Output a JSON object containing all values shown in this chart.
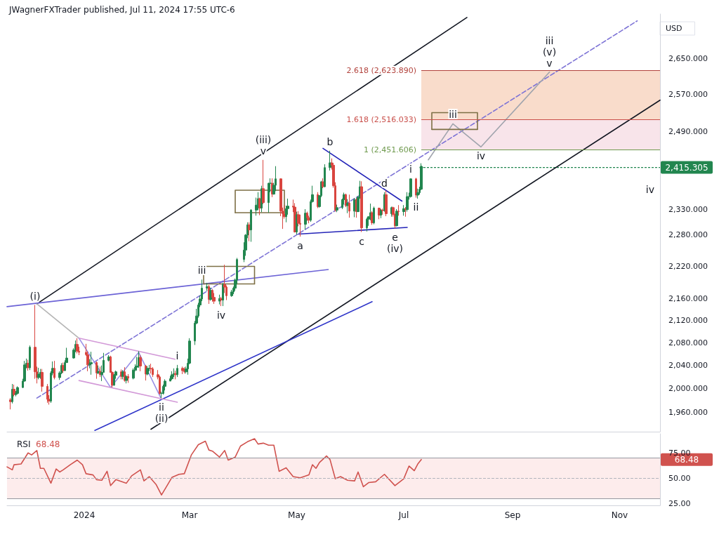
{
  "chart_data": [
    {
      "type": "candlestick",
      "title": "JWagnerFXTrader published, Jul 11, 2024 17:55 UTC-6",
      "ylabel": "USD",
      "log": true,
      "tick_labels": "y",
      "xlim": [
        "2023-11-18",
        "2024-11-24"
      ],
      "ylim": [
        1928,
        2753
      ],
      "yticks": [
        {
          "value": 1960,
          "label": "1,960.000"
        },
        {
          "value": 2000,
          "label": "2,000.000"
        },
        {
          "value": 2040,
          "label": "2,040.000"
        },
        {
          "value": 2080,
          "label": "2,080.000"
        },
        {
          "value": 2120,
          "label": "2,120.000"
        },
        {
          "value": 2160,
          "label": "2,160.000"
        },
        {
          "value": 2220,
          "label": "2,220.000"
        },
        {
          "value": 2280,
          "label": "2,280.000"
        },
        {
          "value": 2330,
          "label": "2,330.000"
        },
        {
          "value": 2490,
          "label": "2,490.000"
        },
        {
          "value": 2570,
          "label": "2,570.000"
        },
        {
          "value": 2650,
          "label": "2,650.000"
        }
      ],
      "x": [
        "2023-11-20",
        "2023-11-21",
        "2023-11-22",
        "2023-11-23",
        "2023-11-24",
        "2023-11-27",
        "2023-11-28",
        "2023-11-29",
        "2023-11-30",
        "2023-12-01",
        "2023-12-04",
        "2023-12-05",
        "2023-12-06",
        "2023-12-07",
        "2023-12-08",
        "2023-12-11",
        "2023-12-12",
        "2023-12-13",
        "2023-12-14",
        "2023-12-15",
        "2023-12-18",
        "2023-12-19",
        "2023-12-20",
        "2023-12-21",
        "2023-12-22",
        "2023-12-26",
        "2023-12-27",
        "2023-12-28",
        "2023-12-29",
        "2024-01-02",
        "2024-01-03",
        "2024-01-04",
        "2024-01-05",
        "2024-01-08",
        "2024-01-09",
        "2024-01-10",
        "2024-01-11",
        "2024-01-12",
        "2024-01-15",
        "2024-01-16",
        "2024-01-17",
        "2024-01-18",
        "2024-01-19",
        "2024-01-22",
        "2024-01-23",
        "2024-01-24",
        "2024-01-25",
        "2024-01-26",
        "2024-01-29",
        "2024-01-30",
        "2024-01-31",
        "2024-02-01",
        "2024-02-02",
        "2024-02-05",
        "2024-02-06",
        "2024-02-07",
        "2024-02-08",
        "2024-02-09",
        "2024-02-12",
        "2024-02-13",
        "2024-02-14",
        "2024-02-15",
        "2024-02-16",
        "2024-02-19",
        "2024-02-20",
        "2024-02-21",
        "2024-02-22",
        "2024-02-23",
        "2024-02-26",
        "2024-02-27",
        "2024-02-28",
        "2024-02-29",
        "2024-03-01",
        "2024-03-04",
        "2024-03-05",
        "2024-03-06",
        "2024-03-07",
        "2024-03-08",
        "2024-03-11",
        "2024-03-12",
        "2024-03-13",
        "2024-03-14",
        "2024-03-15",
        "2024-03-18",
        "2024-03-19",
        "2024-03-20",
        "2024-03-21",
        "2024-03-22",
        "2024-03-25",
        "2024-03-26",
        "2024-03-27",
        "2024-03-28",
        "2024-04-01",
        "2024-04-02",
        "2024-04-03",
        "2024-04-04",
        "2024-04-05",
        "2024-04-08",
        "2024-04-09",
        "2024-04-10",
        "2024-04-11",
        "2024-04-12",
        "2024-04-15",
        "2024-04-16",
        "2024-04-17",
        "2024-04-18",
        "2024-04-19",
        "2024-04-22",
        "2024-04-23",
        "2024-04-24",
        "2024-04-25",
        "2024-04-26",
        "2024-04-29",
        "2024-04-30",
        "2024-05-01",
        "2024-05-02",
        "2024-05-03",
        "2024-05-06",
        "2024-05-07",
        "2024-05-08",
        "2024-05-09",
        "2024-05-10",
        "2024-05-13",
        "2024-05-14",
        "2024-05-15",
        "2024-05-16",
        "2024-05-17",
        "2024-05-20",
        "2024-05-21",
        "2024-05-22",
        "2024-05-23",
        "2024-05-24",
        "2024-05-27",
        "2024-05-28",
        "2024-05-29",
        "2024-05-30",
        "2024-05-31",
        "2024-06-03",
        "2024-06-04",
        "2024-06-05",
        "2024-06-06",
        "2024-06-07",
        "2024-06-10",
        "2024-06-11",
        "2024-06-12",
        "2024-06-13",
        "2024-06-14",
        "2024-06-17",
        "2024-06-18",
        "2024-06-19",
        "2024-06-20",
        "2024-06-21",
        "2024-06-24",
        "2024-06-25",
        "2024-06-26",
        "2024-06-27",
        "2024-06-28",
        "2024-07-01",
        "2024-07-02",
        "2024-07-03",
        "2024-07-04",
        "2024-07-05",
        "2024-07-08",
        "2024-07-09",
        "2024-07-10",
        "2024-07-11"
      ],
      "ohlc": [
        [
          1981,
          1984,
          1965,
          1978
        ],
        [
          1978,
          2008,
          1975,
          1999
        ],
        [
          1999,
          2007,
          1987,
          1990
        ],
        [
          1990,
          1996,
          1987,
          1992
        ],
        [
          1992,
          2004,
          1990,
          2002
        ],
        [
          2002,
          2017,
          2001,
          2013
        ],
        [
          2013,
          2048,
          2012,
          2041
        ],
        [
          2041,
          2052,
          2035,
          2044
        ],
        [
          2044,
          2050,
          2031,
          2036
        ],
        [
          2036,
          2075,
          2032,
          2072
        ],
        [
          2072,
          2148,
          2017,
          2029
        ],
        [
          2029,
          2038,
          2009,
          2019
        ],
        [
          2019,
          2036,
          2016,
          2025
        ],
        [
          2025,
          2034,
          2017,
          2028
        ],
        [
          2028,
          2034,
          1995,
          2004
        ],
        [
          2004,
          2008,
          1976,
          1982
        ],
        [
          1982,
          1989,
          1973,
          1979
        ],
        [
          1979,
          2030,
          1976,
          2027
        ],
        [
          2027,
          2047,
          2023,
          2035
        ],
        [
          2035,
          2048,
          2016,
          2019
        ],
        [
          2019,
          2030,
          2015,
          2027
        ],
        [
          2027,
          2044,
          2025,
          2040
        ],
        [
          2040,
          2045,
          2027,
          2031
        ],
        [
          2031,
          2049,
          2031,
          2045
        ],
        [
          2045,
          2071,
          2045,
          2053
        ],
        [
          2053,
          2070,
          2052,
          2067
        ],
        [
          2067,
          2084,
          2063,
          2077
        ],
        [
          2077,
          2088,
          2061,
          2065
        ],
        [
          2065,
          2073,
          2058,
          2063
        ],
        [
          2063,
          2078,
          2057,
          2059
        ],
        [
          2059,
          2065,
          2030,
          2041
        ],
        [
          2041,
          2051,
          2035,
          2043
        ],
        [
          2043,
          2064,
          2024,
          2045
        ],
        [
          2045,
          2047,
          2017,
          2027
        ],
        [
          2027,
          2040,
          2025,
          2030
        ],
        [
          2030,
          2038,
          2020,
          2024
        ],
        [
          2024,
          2040,
          2013,
          2028
        ],
        [
          2028,
          2062,
          2028,
          2049
        ],
        [
          2049,
          2058,
          2047,
          2055
        ],
        [
          2055,
          2057,
          2028,
          2028
        ],
        [
          2028,
          2030,
          2002,
          2006
        ],
        [
          2006,
          2025,
          2005,
          2023
        ],
        [
          2023,
          2031,
          2017,
          2029
        ],
        [
          2029,
          2033,
          2016,
          2021
        ],
        [
          2021,
          2032,
          2016,
          2029
        ],
        [
          2029,
          2037,
          2012,
          2014
        ],
        [
          2014,
          2023,
          2009,
          2021
        ],
        [
          2021,
          2025,
          2010,
          2018
        ],
        [
          2018,
          2035,
          2016,
          2032
        ],
        [
          2032,
          2042,
          2030,
          2037
        ],
        [
          2037,
          2055,
          2031,
          2039
        ],
        [
          2039,
          2065,
          2036,
          2054
        ],
        [
          2054,
          2058,
          2030,
          2039
        ],
        [
          2039,
          2041,
          2014,
          2025
        ],
        [
          2025,
          2039,
          2023,
          2035
        ],
        [
          2035,
          2041,
          2030,
          2035
        ],
        [
          2035,
          2043,
          2026,
          2034
        ],
        [
          2034,
          2037,
          2020,
          2024
        ],
        [
          2024,
          2032,
          2016,
          2020
        ],
        [
          2020,
          2022,
          1990,
          1992
        ],
        [
          1992,
          1995,
          1984,
          1992
        ],
        [
          1992,
          2007,
          1990,
          2004
        ],
        [
          2004,
          2016,
          1997,
          2013
        ],
        [
          2013,
          2022,
          2013,
          2017
        ],
        [
          2017,
          2030,
          2015,
          2024
        ],
        [
          2024,
          2035,
          2020,
          2026
        ],
        [
          2026,
          2031,
          2016,
          2024
        ],
        [
          2024,
          2041,
          2020,
          2035
        ],
        [
          2035,
          2038,
          2025,
          2031
        ],
        [
          2031,
          2037,
          2026,
          2029
        ],
        [
          2029,
          2038,
          2026,
          2034
        ],
        [
          2034,
          2052,
          2024,
          2044
        ],
        [
          2044,
          2088,
          2042,
          2083
        ],
        [
          2083,
          2119,
          2076,
          2115
        ],
        [
          2115,
          2141,
          2113,
          2128
        ],
        [
          2128,
          2152,
          2125,
          2148
        ],
        [
          2148,
          2165,
          2144,
          2159
        ],
        [
          2159,
          2195,
          2155,
          2179
        ],
        [
          2179,
          2189,
          2174,
          2182
        ],
        [
          2182,
          2185,
          2150,
          2158
        ],
        [
          2158,
          2180,
          2156,
          2175
        ],
        [
          2175,
          2177,
          2154,
          2162
        ],
        [
          2162,
          2170,
          2150,
          2155
        ],
        [
          2155,
          2167,
          2149,
          2160
        ],
        [
          2160,
          2163,
          2146,
          2157
        ],
        [
          2157,
          2189,
          2146,
          2186
        ],
        [
          2186,
          2223,
          2170,
          2181
        ],
        [
          2181,
          2184,
          2157,
          2165
        ],
        [
          2165,
          2176,
          2163,
          2172
        ],
        [
          2172,
          2182,
          2168,
          2179
        ],
        [
          2179,
          2197,
          2174,
          2194
        ],
        [
          2194,
          2236,
          2186,
          2233
        ],
        [
          2233,
          2266,
          2228,
          2251
        ],
        [
          2251,
          2282,
          2240,
          2280
        ],
        [
          2280,
          2305,
          2274,
          2300
        ],
        [
          2300,
          2305,
          2268,
          2290
        ],
        [
          2290,
          2331,
          2267,
          2329
        ],
        [
          2329,
          2354,
          2318,
          2339
        ],
        [
          2339,
          2365,
          2329,
          2352
        ],
        [
          2352,
          2354,
          2319,
          2333
        ],
        [
          2333,
          2378,
          2325,
          2372
        ],
        [
          2372,
          2431,
          2341,
          2344
        ],
        [
          2344,
          2384,
          2324,
          2383
        ],
        [
          2383,
          2393,
          2365,
          2383
        ],
        [
          2383,
          2393,
          2355,
          2361
        ],
        [
          2361,
          2384,
          2360,
          2379
        ],
        [
          2379,
          2418,
          2367,
          2392
        ],
        [
          2392,
          2393,
          2317,
          2327
        ],
        [
          2327,
          2334,
          2292,
          2322
        ],
        [
          2322,
          2339,
          2312,
          2316
        ],
        [
          2316,
          2338,
          2305,
          2332
        ],
        [
          2332,
          2352,
          2320,
          2337
        ],
        [
          2337,
          2350,
          2325,
          2335
        ],
        [
          2335,
          2343,
          2285,
          2286
        ],
        [
          2286,
          2326,
          2281,
          2320
        ],
        [
          2320,
          2327,
          2297,
          2303
        ],
        [
          2303,
          2320,
          2277,
          2301
        ],
        [
          2301,
          2331,
          2291,
          2323
        ],
        [
          2323,
          2326,
          2308,
          2314
        ],
        [
          2314,
          2318,
          2303,
          2309
        ],
        [
          2309,
          2350,
          2306,
          2346
        ],
        [
          2346,
          2378,
          2344,
          2360
        ],
        [
          2360,
          2365,
          2333,
          2336
        ],
        [
          2336,
          2359,
          2334,
          2358
        ],
        [
          2358,
          2388,
          2355,
          2386
        ],
        [
          2386,
          2393,
          2373,
          2376
        ],
        [
          2376,
          2422,
          2375,
          2415
        ],
        [
          2415,
          2450,
          2409,
          2425
        ],
        [
          2425,
          2434,
          2411,
          2420
        ],
        [
          2420,
          2425,
          2374,
          2378
        ],
        [
          2378,
          2385,
          2326,
          2329
        ],
        [
          2329,
          2340,
          2325,
          2334
        ],
        [
          2334,
          2352,
          2331,
          2350
        ],
        [
          2350,
          2364,
          2340,
          2360
        ],
        [
          2360,
          2362,
          2335,
          2338
        ],
        [
          2338,
          2351,
          2323,
          2343
        ],
        [
          2343,
          2360,
          2314,
          2327
        ],
        [
          2327,
          2353,
          2315,
          2350
        ],
        [
          2350,
          2353,
          2314,
          2326
        ],
        [
          2326,
          2357,
          2325,
          2355
        ],
        [
          2355,
          2388,
          2352,
          2376
        ],
        [
          2376,
          2387,
          2286,
          2294
        ],
        [
          2294,
          2314,
          2287,
          2311
        ],
        [
          2311,
          2317,
          2298,
          2316
        ],
        [
          2316,
          2342,
          2309,
          2324
        ],
        [
          2324,
          2327,
          2300,
          2304
        ],
        [
          2304,
          2336,
          2301,
          2333
        ],
        [
          2333,
          2334,
          2311,
          2319
        ],
        [
          2319,
          2331,
          2313,
          2329
        ],
        [
          2329,
          2332,
          2320,
          2328
        ],
        [
          2328,
          2365,
          2326,
          2360
        ],
        [
          2360,
          2368,
          2317,
          2322
        ],
        [
          2322,
          2336,
          2316,
          2334
        ],
        [
          2334,
          2336,
          2316,
          2320
        ],
        [
          2320,
          2322,
          2293,
          2298
        ],
        [
          2298,
          2331,
          2297,
          2327
        ],
        [
          2327,
          2339,
          2318,
          2326
        ],
        [
          2326,
          2339,
          2318,
          2332
        ],
        [
          2332,
          2335,
          2316,
          2330
        ],
        [
          2330,
          2365,
          2326,
          2356
        ],
        [
          2356,
          2364,
          2350,
          2356
        ],
        [
          2356,
          2393,
          2354,
          2392
        ],
        [
          2392,
          2394,
          2354,
          2359
        ],
        [
          2359,
          2372,
          2352,
          2364
        ],
        [
          2364,
          2376,
          2360,
          2371
        ],
        [
          2371,
          2424,
          2369,
          2415.305
        ]
      ],
      "series": [
        {
          "type": "line",
          "color": "#131722",
          "x": [
            "2023-12-05",
            "2024-08-06"
          ],
          "values": [
            2150,
            2745
          ]
        },
        {
          "type": "line",
          "color": "#131722",
          "x": [
            "2024-02-08",
            "2024-11-24"
          ],
          "values": [
            1932,
            2558
          ]
        },
        {
          "type": "line",
          "color": "#7e74d6",
          "line_style": "dashed",
          "x": [
            "2023-12-05",
            "2024-11-11"
          ],
          "values": [
            1984,
            2737
          ]
        },
        {
          "type": "line",
          "color": "#6c63d6",
          "x": [
            "2023-11-18",
            "2024-05-19"
          ],
          "values": [
            2145,
            2214
          ]
        },
        {
          "type": "line",
          "color": "#2f35c9",
          "x": [
            "2024-01-07",
            "2024-06-13"
          ],
          "values": [
            1930,
            2154
          ]
        },
        {
          "type": "line",
          "color": "#2424b8",
          "x": [
            "2024-05-16",
            "2024-06-30"
          ],
          "values": [
            2455,
            2347
          ]
        },
        {
          "type": "line",
          "color": "#2424b8",
          "x": [
            "2024-05-02",
            "2024-07-03"
          ],
          "values": [
            2282,
            2295
          ]
        },
        {
          "type": "line",
          "color": "#b5b5b5",
          "x": [
            "2023-12-05",
            "2023-12-29"
          ],
          "values": [
            2150,
            2088
          ]
        },
        {
          "type": "line",
          "color": "#9a90e6",
          "x": [
            "2023-12-29",
            "2024-01-16",
            "2024-02-01",
            "2024-02-14"
          ],
          "values": [
            2088,
            2002,
            2063,
            1982
          ]
        },
        {
          "type": "line",
          "color": "#d39ad8",
          "x": [
            "2023-12-29",
            "2024-02-23"
          ],
          "values": [
            2088,
            2050
          ]
        },
        {
          "type": "line",
          "color": "#d39ad8",
          "x": [
            "2023-12-29",
            "2024-02-23"
          ],
          "values": [
            2014,
            1977
          ]
        },
        {
          "type": "line",
          "color": "#a0a4ad",
          "x": [
            "2024-07-15",
            "2024-07-29",
            "2024-08-14",
            "2024-09-22"
          ],
          "values": [
            2431,
            2507,
            2458,
            2620
          ]
        },
        {
          "type": "line",
          "color": "#7d6f45",
          "x": [
            "2024-03-27",
            "2024-03-27",
            "2024-04-24",
            "2024-04-24"
          ],
          "values": [
            2324,
            2369,
            2369,
            2324
          ]
        },
        {
          "type": "line",
          "color": "#7d6f45",
          "x": [
            "2024-03-27",
            "2024-04-24"
          ],
          "values": [
            2324,
            2324
          ]
        },
        {
          "type": "line",
          "color": "#7d6f45",
          "x": [
            "2024-03-09",
            "2024-03-09",
            "2024-04-07",
            "2024-04-07"
          ],
          "values": [
            2187,
            2220,
            2220,
            2187
          ]
        },
        {
          "type": "line",
          "color": "#7d6f45",
          "x": [
            "2024-03-09",
            "2024-04-07"
          ],
          "values": [
            2187,
            2187
          ]
        },
        {
          "type": "line",
          "color": "#7d6f45",
          "x": [
            "2024-07-17",
            "2024-07-17",
            "2024-08-12",
            "2024-08-12"
          ],
          "values": [
            2495,
            2531,
            2531,
            2495
          ]
        },
        {
          "type": "line",
          "color": "#7d6f45",
          "x": [
            "2024-07-17",
            "2024-08-12"
          ],
          "values": [
            2495,
            2495
          ]
        }
      ],
      "ref_lines": [
        {
          "axis": "y",
          "value": 2623.89,
          "label": "2.618 (2,623.890)",
          "color": "#b2433d"
        },
        {
          "axis": "y",
          "value": 2516.033,
          "label": "1.618 (2,516.033)",
          "color": "#c94f4a"
        },
        {
          "axis": "y",
          "value": 2451.606,
          "label": "1 (2,451.606)",
          "color": "#6f9a4e"
        }
      ],
      "bands": [
        {
          "axis": "y",
          "from": 2451.606,
          "to": 2516.033,
          "color": "#f8e4ea"
        },
        {
          "axis": "y",
          "from": 2516.033,
          "to": 2623.89,
          "color": "#f9dccb"
        }
      ],
      "annotations": [
        {
          "text": "(i)",
          "x": "2023-12-04",
          "y": 2148
        },
        {
          "text": "ii",
          "x": "2024-02-14",
          "y": 1984
        },
        {
          "text": "(ii)",
          "x": "2024-02-14",
          "y": 1984
        },
        {
          "text": "v",
          "x": "2024-04-12",
          "y": 2431
        },
        {
          "text": "(iii)",
          "x": "2024-04-12",
          "y": 2431
        },
        {
          "text": "e",
          "x": "2024-06-26",
          "y": 2293
        },
        {
          "text": "(iv)",
          "x": "2024-06-26",
          "y": 2293
        },
        {
          "text": "c",
          "x": "2024-06-07",
          "y": 2286
        },
        {
          "text": "a",
          "x": "2024-05-03",
          "y": 2277
        },
        {
          "text": "b",
          "x": "2024-05-20",
          "y": 2450
        },
        {
          "text": "d",
          "x": "2024-06-20",
          "y": 2365
        },
        {
          "text": "i",
          "x": "2024-07-05",
          "y": 2393
        },
        {
          "text": "ii",
          "x": "2024-07-08",
          "y": 2354
        },
        {
          "text": "iii",
          "x": "2024-07-29",
          "y": 2507
        },
        {
          "text": "iv",
          "x": "2024-08-14",
          "y": 2458
        },
        {
          "text": "v",
          "x": "2024-09-22",
          "y": 2620
        },
        {
          "text": "(v)",
          "x": "2024-09-22",
          "y": 2620
        },
        {
          "text": "iii",
          "x": "2024-09-22",
          "y": 2620
        },
        "iv",
        {
          "text": "iii",
          "x": "2024-03-08",
          "y": 2195
        },
        {
          "text": "iv",
          "x": "2024-03-19",
          "y": 2146
        },
        {
          "text": "i",
          "x": "2024-02-23",
          "y": 2041
        },
        {
          "text": "2,415.305",
          "x": "2024-07-11",
          "y": 2415.305
        }
      ]
    },
    {
      "type": "line",
      "legend": "top left",
      "xlim": [
        "2023-11-18",
        "2024-11-24"
      ],
      "xticks": [
        {
          "value": "2024-01-01",
          "label": "2024"
        },
        {
          "value": "2024-03-01",
          "label": "Mar"
        },
        {
          "value": "2024-05-01",
          "label": "May"
        },
        {
          "value": "2024-07-01",
          "label": "Jul"
        },
        {
          "value": "2024-09-01",
          "label": "Sep"
        },
        {
          "value": "2024-11-01",
          "label": "Nov"
        }
      ],
      "ylim": [
        23,
        94
      ],
      "yticks": [
        {
          "value": 25,
          "label": "25.00"
        },
        {
          "value": 50,
          "label": "50.00"
        },
        {
          "value": 75,
          "label": "75.00"
        }
      ],
      "series": [
        {
          "name": "RSI",
          "color": "#d0524e",
          "x": [
            "2023-11-18",
            "2023-11-21",
            "2023-11-22",
            "2023-11-26",
            "2023-11-30",
            "2023-12-02",
            "2023-12-05",
            "2023-12-07",
            "2023-12-09",
            "2023-12-13",
            "2023-12-16",
            "2023-12-18",
            "2023-12-20",
            "2023-12-24",
            "2023-12-28",
            "2023-12-31",
            "2024-01-02",
            "2024-01-06",
            "2024-01-08",
            "2024-01-11",
            "2024-01-14",
            "2024-01-16",
            "2024-01-19",
            "2024-01-25",
            "2024-01-28",
            "2024-02-02",
            "2024-02-04",
            "2024-02-07",
            "2024-02-11",
            "2024-02-14",
            "2024-02-17",
            "2024-02-20",
            "2024-02-24",
            "2024-02-27",
            "2024-03-02",
            "2024-03-06",
            "2024-03-10",
            "2024-03-12",
            "2024-03-14",
            "2024-03-18",
            "2024-03-21",
            "2024-03-23",
            "2024-03-27",
            "2024-03-30",
            "2024-04-03",
            "2024-04-07",
            "2024-04-09",
            "2024-04-12",
            "2024-04-15",
            "2024-04-18",
            "2024-04-21",
            "2024-04-25",
            "2024-04-29",
            "2024-05-03",
            "2024-05-08",
            "2024-05-10",
            "2024-05-12",
            "2024-05-14",
            "2024-05-18",
            "2024-05-20",
            "2024-05-23",
            "2024-05-26",
            "2024-05-30",
            "2024-06-03",
            "2024-06-05",
            "2024-06-08",
            "2024-06-11",
            "2024-06-15",
            "2024-06-20",
            "2024-06-26",
            "2024-07-01",
            "2024-07-04",
            "2024-07-07",
            "2024-07-09",
            "2024-07-11"
          ],
          "values": [
            61.2,
            58.2,
            63.3,
            64.1,
            75.0,
            73.0,
            77.4,
            59.7,
            59.7,
            45.0,
            59.1,
            56.1,
            58.2,
            63.3,
            67.9,
            63.3,
            54.4,
            53.2,
            48.5,
            47.9,
            56.8,
            42.6,
            48.5,
            45.0,
            52.3,
            58.2,
            47.3,
            51.5,
            43.5,
            33.3,
            42.0,
            50.9,
            53.8,
            54.4,
            73.0,
            83.2,
            86.7,
            77.9,
            76.8,
            70.9,
            77.4,
            67.9,
            70.9,
            81.8,
            86.1,
            89.1,
            83.8,
            84.7,
            82.7,
            82.7,
            56.8,
            60.3,
            51.5,
            50.3,
            53.2,
            63.3,
            59.7,
            65.6,
            72.0,
            68.5,
            49.4,
            51.5,
            47.9,
            47.3,
            56.1,
            41.5,
            45.6,
            46.4,
            53.8,
            42.6,
            49.4,
            62.0,
            57.4,
            64.0,
            68.48
          ]
        }
      ],
      "ref_lines": [
        {
          "axis": "y",
          "value": 70,
          "color": "#9598a1"
        },
        {
          "axis": "y",
          "value": 30,
          "color": "#9598a1"
        },
        {
          "axis": "y",
          "value": 50,
          "color": "#b2b5be",
          "line_style": "dashed"
        }
      ],
      "bands": [
        {
          "axis": "y",
          "from": 30,
          "to": 70,
          "color": "#fdecec"
        }
      ],
      "annotations": [
        "68.48"
      ]
    }
  ]
}
